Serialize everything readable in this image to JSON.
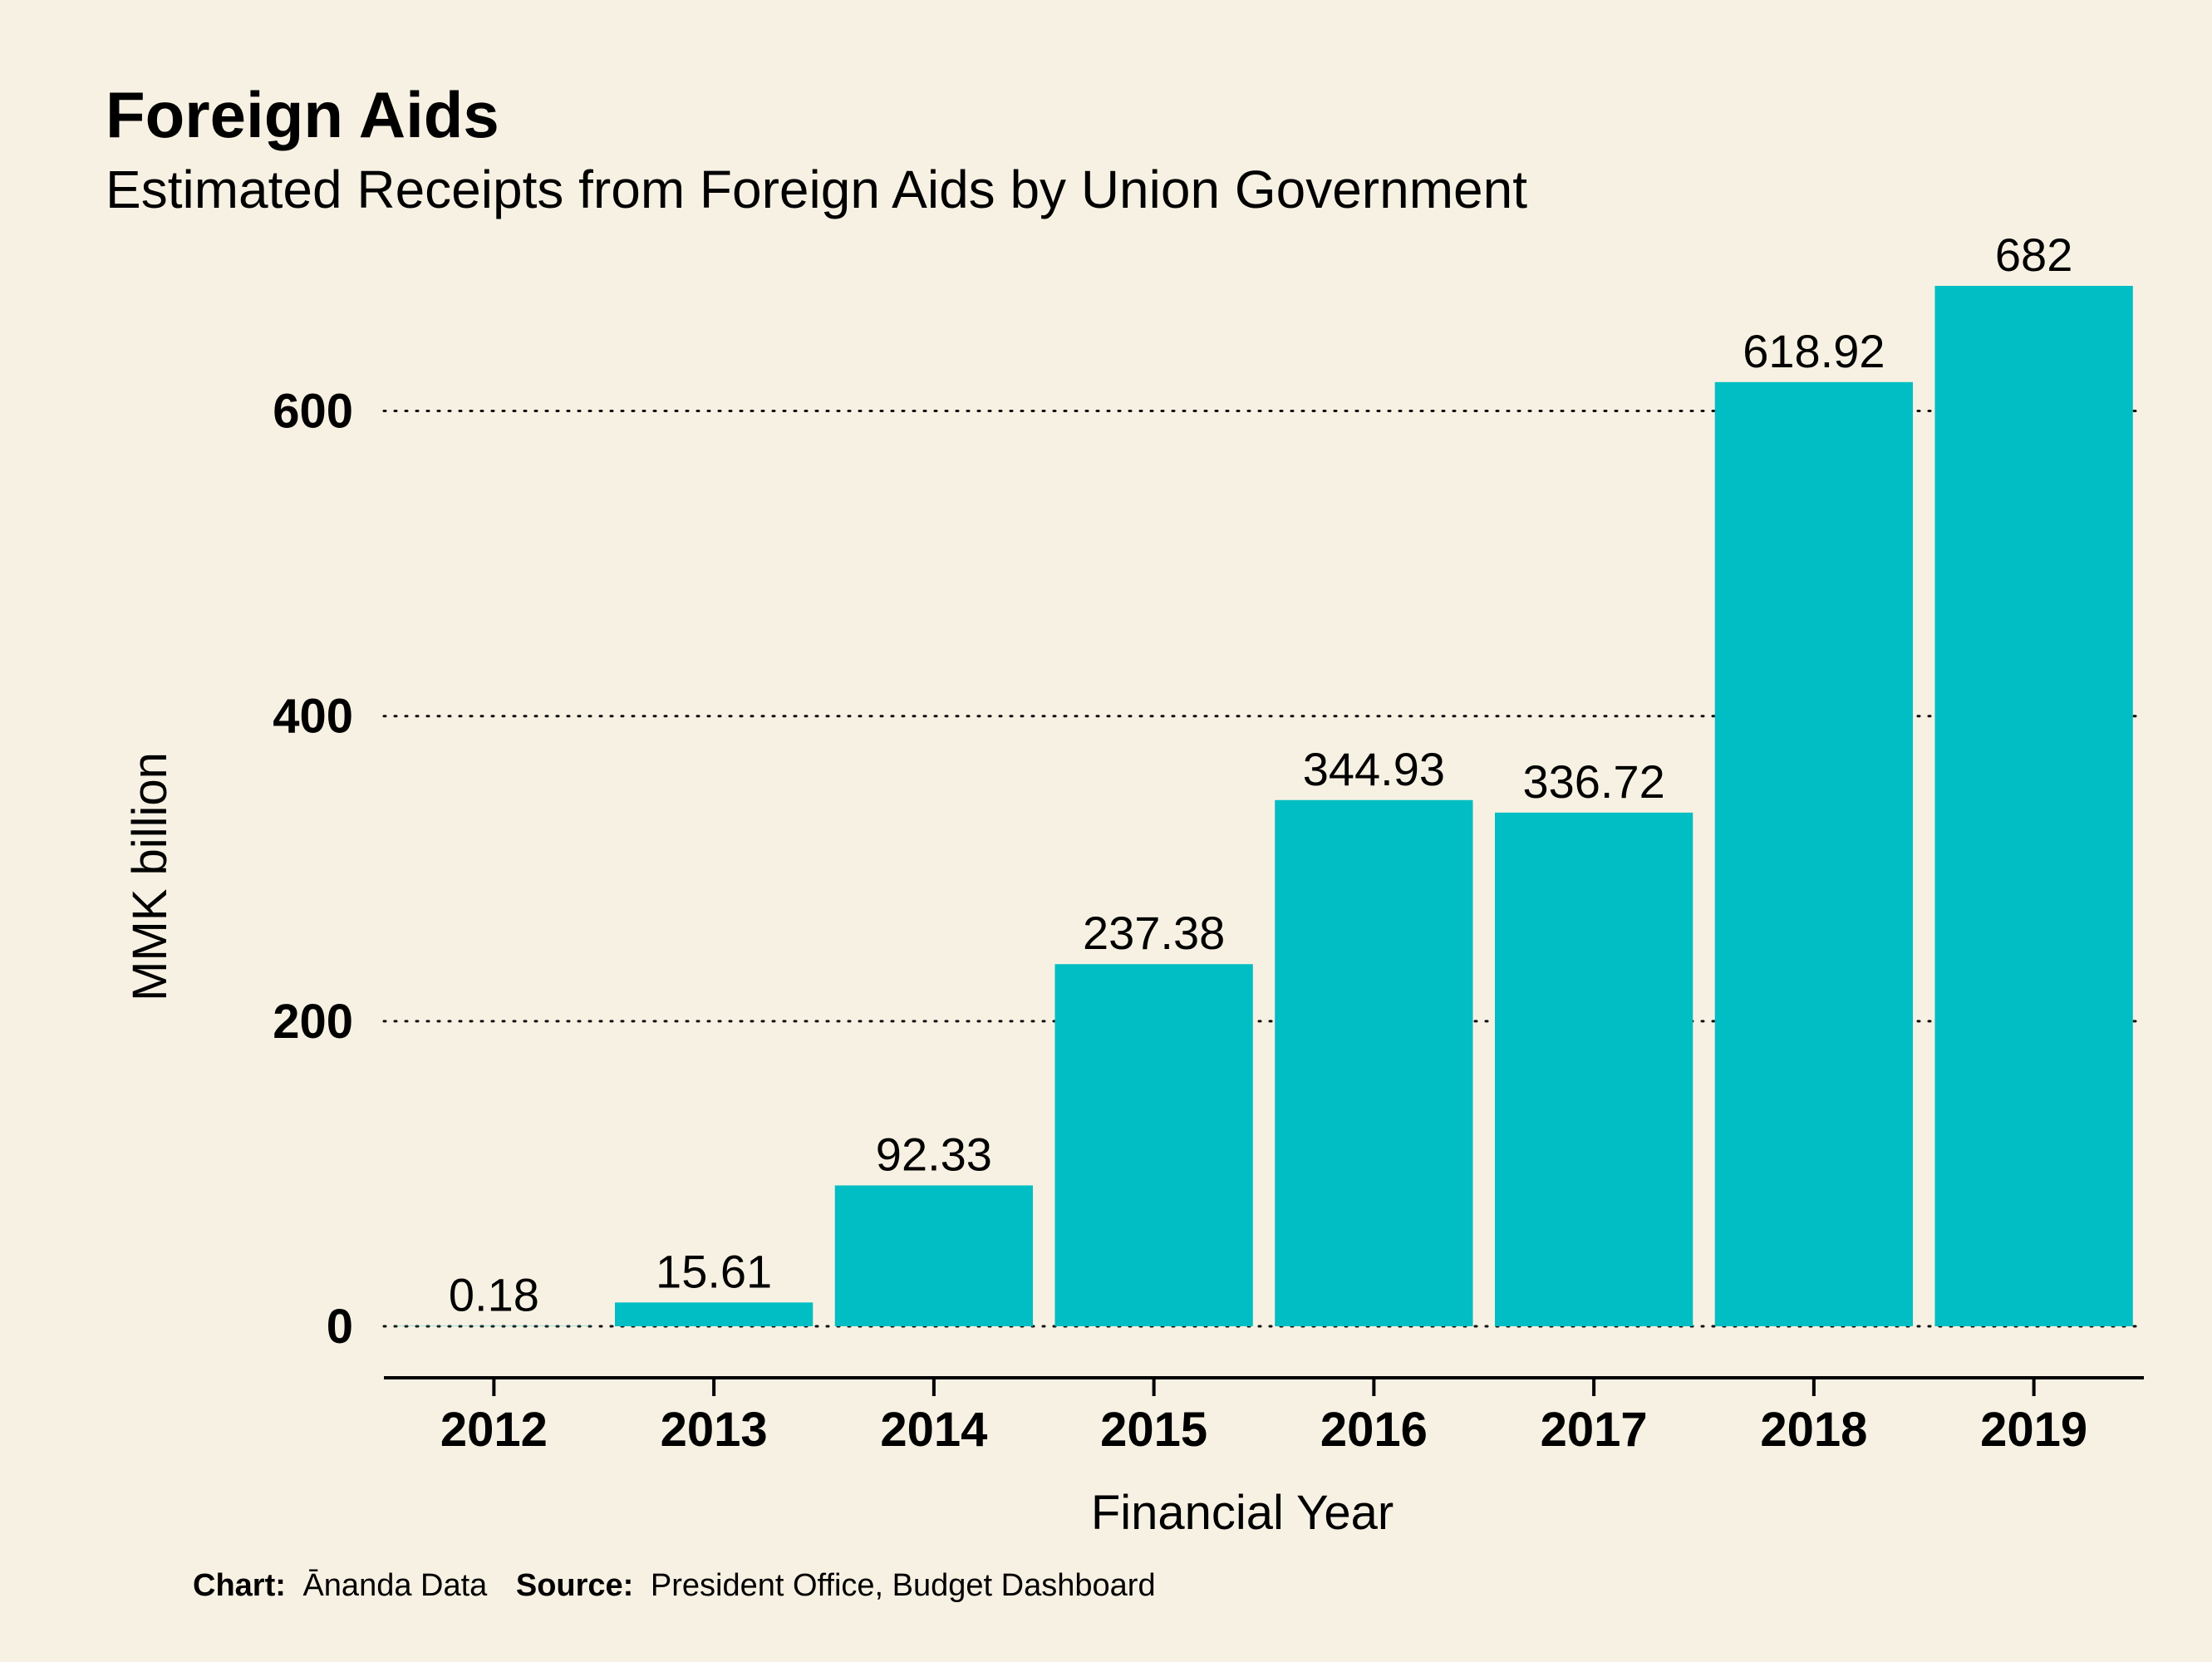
{
  "chart_data": {
    "type": "bar",
    "title": "Foreign Aids",
    "subtitle": "Estimated Receipts from Foreign Aids by Union Government",
    "xlabel": "Financial Year",
    "ylabel": "MMK billion",
    "categories": [
      "2012",
      "2013",
      "2014",
      "2015",
      "2016",
      "2017",
      "2018",
      "2019"
    ],
    "values": [
      0.18,
      15.61,
      92.33,
      237.38,
      344.93,
      336.72,
      618.92,
      682
    ],
    "data_labels": [
      "0.18",
      "15.61",
      "92.33",
      "237.38",
      "344.93",
      "336.72",
      "618.92",
      "682"
    ],
    "ylim": [
      0,
      682
    ],
    "yticks": [
      0,
      200,
      400,
      600
    ],
    "ytick_labels": [
      "0",
      "200",
      "400",
      "600"
    ],
    "grid": "horizontal dotted",
    "bar_color": "#00bec3",
    "caption": {
      "chart_label": "Chart:",
      "chart_value": "Ānanda Data",
      "source_label": "Source:",
      "source_value": "President Office, Budget Dashboard"
    }
  }
}
